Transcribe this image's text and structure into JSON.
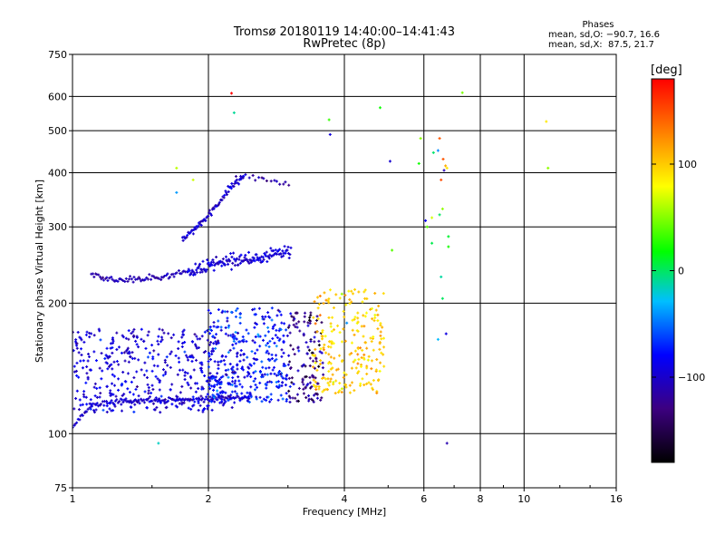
{
  "chart_data": {
    "type": "scatter",
    "title": "Tromsø 20180119 14:40:00–14:41:43",
    "subtitle": "RwPretec (8p)",
    "xlabel": "Frequency [MHz]",
    "ylabel": "Stationary phase Virtual Height [km]",
    "x_scale": "log",
    "y_scale": "log",
    "xlim": [
      1,
      16
    ],
    "ylim": [
      75,
      750
    ],
    "x_ticks": [
      "1",
      "2",
      "4",
      "6",
      "8",
      "10",
      "16"
    ],
    "x_tick_values": [
      1,
      2,
      4,
      6,
      8,
      10,
      16
    ],
    "y_ticks": [
      "75",
      "100",
      "200",
      "300",
      "400",
      "500",
      "600",
      "750"
    ],
    "y_tick_values": [
      75,
      100,
      200,
      300,
      400,
      500,
      600,
      750
    ],
    "grid": true,
    "colorbar": {
      "label": "[deg]",
      "min": -180,
      "max": 180,
      "ticks": [
        "100",
        "0",
        "−100"
      ],
      "tick_values": [
        100,
        0,
        -100
      ]
    },
    "phase_stats": {
      "title": "Phases",
      "line1": "mean, sd,O: −90.7, 16.6",
      "line2": "mean, sd,X:  87.5, 21.7"
    },
    "traces": [
      {
        "kind": "curve",
        "x": [
          1.0,
          1.05,
          1.1,
          1.2,
          1.3,
          1.45,
          1.6,
          1.8,
          2.0,
          2.2,
          2.5
        ],
        "y": [
          103,
          110,
          116,
          118,
          119,
          119,
          119.5,
          120,
          120.5,
          121,
          121
        ],
        "jitter": 0.01,
        "points": 140,
        "phase": -100,
        "phase_sd": 12
      },
      {
        "kind": "cloud",
        "x": [
          1.0,
          2.3
        ],
        "y": [
          112,
          175
        ],
        "points": 430,
        "phase": -95,
        "phase_sd": 18
      },
      {
        "kind": "cloud",
        "x": [
          2.0,
          3.0
        ],
        "y": [
          118,
          195
        ],
        "points": 330,
        "phase": -80,
        "phase_sd": 25
      },
      {
        "kind": "cloud",
        "x": [
          3.0,
          3.6
        ],
        "y": [
          118,
          192
        ],
        "points": 130,
        "phase": -125,
        "phase_sd": 30
      },
      {
        "kind": "cloud",
        "x": [
          3.4,
          4.9
        ],
        "y": [
          124,
          215
        ],
        "points": 230,
        "phase": 100,
        "phase_sd": 18
      },
      {
        "kind": "curve",
        "x": [
          1.1,
          1.2,
          1.4,
          1.6,
          1.8
        ],
        "y": [
          232,
          227,
          227,
          230,
          238
        ],
        "jitter": 0.012,
        "points": 70,
        "phase": -110,
        "phase_sd": 10
      },
      {
        "kind": "curve",
        "x": [
          1.75,
          1.85,
          1.95,
          2.1,
          2.25,
          2.4
        ],
        "y": [
          280,
          295,
          310,
          340,
          372,
          392
        ],
        "jitter": 0.012,
        "points": 75,
        "phase": -100,
        "phase_sd": 14
      },
      {
        "kind": "curve",
        "x": [
          2.3,
          2.5,
          2.7,
          2.9,
          3.05
        ],
        "y": [
          390,
          390,
          385,
          378,
          375
        ],
        "jitter": 0.01,
        "points": 18,
        "phase": -110,
        "phase_sd": 10
      },
      {
        "kind": "curve",
        "x": [
          1.8,
          2.0,
          2.3,
          2.6,
          3.05
        ],
        "y": [
          235,
          245,
          250,
          255,
          265
        ],
        "jitter": 0.025,
        "points": 150,
        "phase": -95,
        "phase_sd": 12
      },
      {
        "kind": "scatter",
        "x": [
          2.25,
          2.28,
          3.7,
          3.72,
          4.8,
          5.05,
          5.85,
          5.9,
          6.1,
          6.25,
          6.45,
          6.5,
          6.55,
          6.6,
          6.62,
          6.7,
          6.75,
          6.8,
          6.8,
          11.2,
          11.3,
          1.7,
          1.7,
          1.85,
          6.25,
          6.5,
          6.55,
          1.55,
          6.75,
          5.1,
          6.65,
          7.3,
          6.3,
          6.45,
          6.6,
          6.72,
          6.05,
          3.95,
          4.05
        ],
        "y": [
          610,
          550,
          530,
          490,
          565,
          425,
          420,
          480,
          300,
          275,
          450,
          480,
          385,
          330,
          430,
          415,
          410,
          270,
          285,
          525,
          410,
          360,
          410,
          385,
          315,
          320,
          230,
          95,
          95,
          265,
          405,
          612,
          445,
          165,
          205,
          170,
          310,
          210,
          180
        ],
        "phase": 20,
        "phase_sd": 95
      }
    ]
  }
}
